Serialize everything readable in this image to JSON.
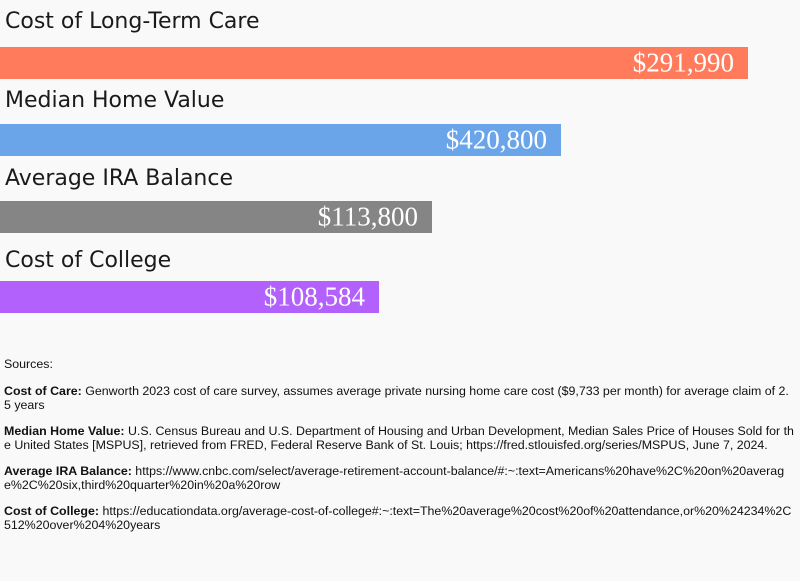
{
  "chart_data": {
    "type": "bar",
    "orientation": "horizontal",
    "categories": [
      "Cost of Long-Term Care",
      "Median Home Value",
      "Average IRA Balance",
      "Cost of College"
    ],
    "values": [
      291990,
      420800,
      113800,
      108584
    ],
    "value_labels": [
      "$291,990",
      "$420,800",
      "$113,800",
      "$108,584"
    ],
    "colors": [
      "#ff7b5c",
      "#6aa5ea",
      "#858585",
      "#b261fc"
    ],
    "title": "",
    "xlabel": "",
    "ylabel": ""
  },
  "sources": {
    "title": "Sources:",
    "items": [
      {
        "label": "Cost of Care:",
        "text": " Genworth 2023 cost of care survey, assumes average private nursing home care cost ($9,733 per month) for average claim of 2.5 years"
      },
      {
        "label": "Median Home Value:",
        "text": " U.S. Census Bureau and U.S. Department of Housing and Urban Development, Median Sales Price of Houses Sold for the United States [MSPUS], retrieved from FRED, Federal Reserve Bank of St. Louis; https://fred.stlouisfed.org/series/MSPUS, June 7, 2024."
      },
      {
        "label": "Average IRA Balance:",
        "text": " https://www.cnbc.com/select/average-retirement-account-balance/#:~:text=Americans%20have%2C%20on%20average%2C%20six,third%20quarter%20in%20a%20row"
      },
      {
        "label": "Cost of College:",
        "text": "  https://educationdata.org/average-cost-of-college#:~:text=The%20average%20cost%20of%20attendance,or%20%24234%2C512%20over%204%20years"
      }
    ]
  }
}
